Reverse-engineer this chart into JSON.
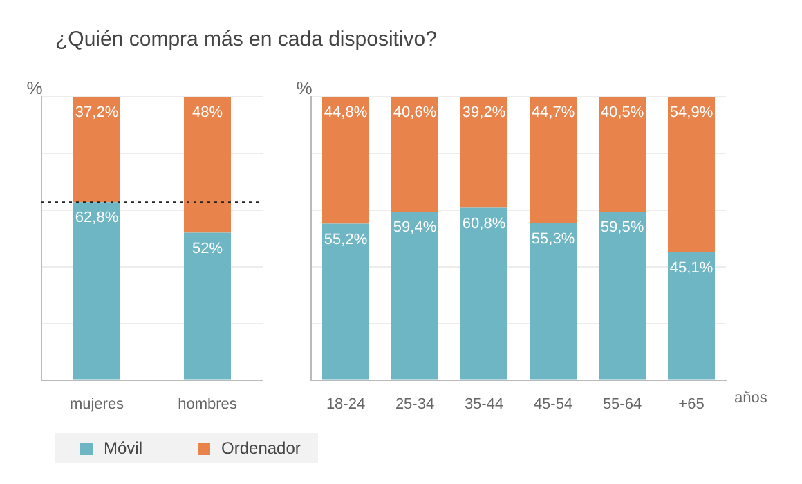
{
  "chart_data": [
    {
      "type": "bar",
      "title": "¿Quién compra más en cada dispositivo?",
      "ylabel": "%",
      "categories": [
        "mujeres",
        "hombres"
      ],
      "stacked": true,
      "legend": "bottom",
      "grid": "y",
      "tick_labels": "x",
      "ylim": [
        0,
        100
      ],
      "yticks": [
        {
          "value": 0,
          "label": null
        },
        {
          "value": 20,
          "label": null
        },
        {
          "value": 40,
          "label": null
        },
        {
          "value": 60,
          "label": null
        },
        {
          "value": 80,
          "label": null
        },
        {
          "value": 100,
          "label": null
        }
      ],
      "ref_lines": [
        {
          "axis": "y",
          "value": 62.8,
          "color": "#222222",
          "line_style": "dotted"
        }
      ],
      "series": [
        {
          "name": "Móvil",
          "color": "#6fb6c4",
          "values": [
            62.8,
            52
          ],
          "value_labels": [
            "62,8%",
            "52%"
          ]
        },
        {
          "name": "Ordenador",
          "color": "#e8834b",
          "values": [
            37.2,
            48
          ],
          "value_labels": [
            "37,2%",
            "48%"
          ]
        }
      ]
    },
    {
      "type": "bar",
      "ylabel": "%",
      "xlabel": "años",
      "categories": [
        "18-24",
        "25-34",
        "35-44",
        "45-54",
        "55-64",
        "+65"
      ],
      "stacked": true,
      "grid": "y",
      "tick_labels": "x",
      "ylim": [
        0,
        100
      ],
      "yticks": [
        {
          "value": 0,
          "label": null
        },
        {
          "value": 20,
          "label": null
        },
        {
          "value": 40,
          "label": null
        },
        {
          "value": 60,
          "label": null
        },
        {
          "value": 80,
          "label": null
        },
        {
          "value": 100,
          "label": null
        }
      ],
      "series": [
        {
          "color": "#6fb6c4",
          "values": [
            55.2,
            59.4,
            60.8,
            55.3,
            59.5,
            45.1
          ],
          "value_labels": [
            "55,2%",
            "59,4%",
            "60,8%",
            "55,3%",
            "59,5%",
            "45,1%"
          ]
        },
        {
          "color": "#e8834b",
          "values": [
            44.8,
            40.6,
            39.2,
            44.7,
            40.5,
            54.9
          ],
          "value_labels": [
            "44,8%",
            "40,6%",
            "39,2%",
            "44,7%",
            "40,5%",
            "54,9%"
          ]
        }
      ]
    }
  ]
}
